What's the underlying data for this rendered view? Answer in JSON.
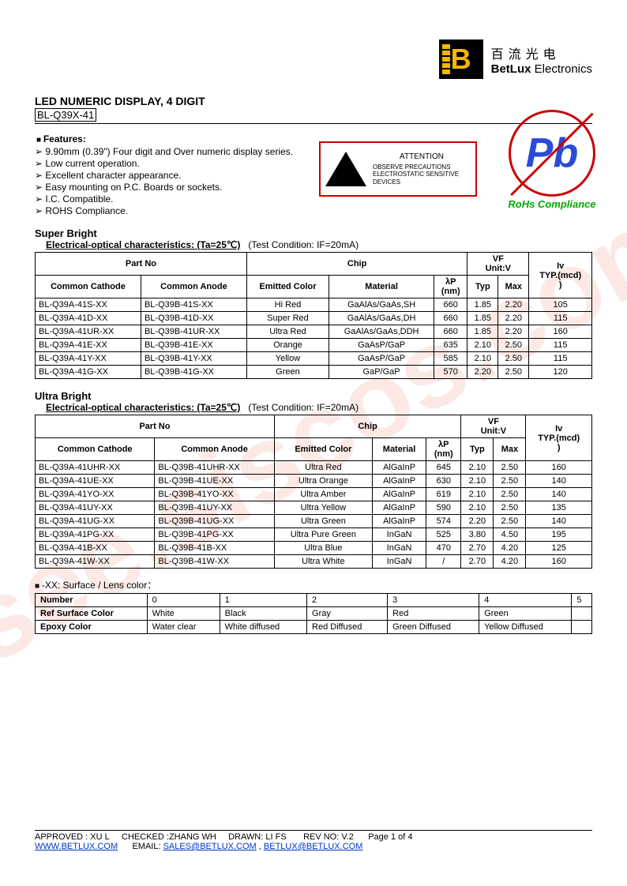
{
  "watermark": "isee.siscos.com",
  "logo": {
    "cn": "百流光电",
    "en_bold": "BetLux",
    "en_light": " Electronics"
  },
  "title": "LED NUMERIC DISPLAY, 4 DIGIT",
  "subtitle": "BL-Q39X-41",
  "features": {
    "heading": "Features:",
    "items": [
      "9.90mm (0.39\") Four digit and Over numeric display series.",
      "Low current operation.",
      "Excellent character appearance.",
      "Easy mounting on P.C. Boards or sockets.",
      "I.C. Compatible.",
      "ROHS Compliance."
    ]
  },
  "esd": {
    "attention": "ATTENTION",
    "text": "OBSERVE PRECAUTIONS ELECTROSTATIC SENSITIVE DEVICES"
  },
  "pb": {
    "symbol": "Pb",
    "label": "RoHs Compliance"
  },
  "super_bright": {
    "title": "Super Bright",
    "sub": "Electrical-optical characteristics: (Ta=25℃)",
    "cond": "(Test Condition: IF=20mA)",
    "headers": {
      "partno": "Part No",
      "chip": "Chip",
      "vf": "VF",
      "vf_unit": "Unit:V",
      "iv": "Iv",
      "iv_unit": "TYP.(mcd)",
      "cc": "Common Cathode",
      "ca": "Common Anode",
      "ec": "Emitted Color",
      "mat": "Material",
      "lp": "λP",
      "lp_unit": "(nm)",
      "typ": "Typ",
      "max": "Max"
    },
    "rows": [
      {
        "cc": "BL-Q39A-41S-XX",
        "ca": "BL-Q39B-41S-XX",
        "ec": "Hi Red",
        "mat": "GaAlAs/GaAs,SH",
        "lp": "660",
        "typ": "1.85",
        "max": "2.20",
        "iv": "105"
      },
      {
        "cc": "BL-Q39A-41D-XX",
        "ca": "BL-Q39B-41D-XX",
        "ec": "Super Red",
        "mat": "GaAlAs/GaAs,DH",
        "lp": "660",
        "typ": "1.85",
        "max": "2.20",
        "iv": "115"
      },
      {
        "cc": "BL-Q39A-41UR-XX",
        "ca": "BL-Q39B-41UR-XX",
        "ec": "Ultra Red",
        "mat": "GaAlAs/GaAs,DDH",
        "lp": "660",
        "typ": "1.85",
        "max": "2.20",
        "iv": "160"
      },
      {
        "cc": "BL-Q39A-41E-XX",
        "ca": "BL-Q39B-41E-XX",
        "ec": "Orange",
        "mat": "GaAsP/GaP",
        "lp": "635",
        "typ": "2.10",
        "max": "2.50",
        "iv": "115"
      },
      {
        "cc": "BL-Q39A-41Y-XX",
        "ca": "BL-Q39B-41Y-XX",
        "ec": "Yellow",
        "mat": "GaAsP/GaP",
        "lp": "585",
        "typ": "2.10",
        "max": "2.50",
        "iv": "115"
      },
      {
        "cc": "BL-Q39A-41G-XX",
        "ca": "BL-Q39B-41G-XX",
        "ec": "Green",
        "mat": "GaP/GaP",
        "lp": "570",
        "typ": "2.20",
        "max": "2.50",
        "iv": "120"
      }
    ]
  },
  "ultra_bright": {
    "title": "Ultra Bright",
    "sub": "Electrical-optical characteristics: (Ta=25℃)",
    "cond": "(Test Condition: IF=20mA)",
    "headers": {
      "partno": "Part No",
      "chip": "Chip",
      "vf": "VF",
      "vf_unit": "Unit:V",
      "iv": "Iv",
      "iv_unit": "TYP.(mcd)",
      "cc": "Common Cathode",
      "ca": "Common Anode",
      "ec": "Emitted Color",
      "mat": "Material",
      "lp": "λP",
      "lp_unit": "(nm)",
      "typ": "Typ",
      "max": "Max"
    },
    "rows": [
      {
        "cc": "BL-Q39A-41UHR-XX",
        "ca": "BL-Q39B-41UHR-XX",
        "ec": "Ultra Red",
        "mat": "AlGaInP",
        "lp": "645",
        "typ": "2.10",
        "max": "2.50",
        "iv": "160"
      },
      {
        "cc": "BL-Q39A-41UE-XX",
        "ca": "BL-Q39B-41UE-XX",
        "ec": "Ultra Orange",
        "mat": "AlGaInP",
        "lp": "630",
        "typ": "2.10",
        "max": "2.50",
        "iv": "140"
      },
      {
        "cc": "BL-Q39A-41YO-XX",
        "ca": "BL-Q39B-41YO-XX",
        "ec": "Ultra Amber",
        "mat": "AlGaInP",
        "lp": "619",
        "typ": "2.10",
        "max": "2.50",
        "iv": "140"
      },
      {
        "cc": "BL-Q39A-41UY-XX",
        "ca": "BL-Q39B-41UY-XX",
        "ec": "Ultra Yellow",
        "mat": "AlGaInP",
        "lp": "590",
        "typ": "2.10",
        "max": "2.50",
        "iv": "135"
      },
      {
        "cc": "BL-Q39A-41UG-XX",
        "ca": "BL-Q39B-41UG-XX",
        "ec": "Ultra Green",
        "mat": "AlGaInP",
        "lp": "574",
        "typ": "2.20",
        "max": "2.50",
        "iv": "140"
      },
      {
        "cc": "BL-Q39A-41PG-XX",
        "ca": "BL-Q39B-41PG-XX",
        "ec": "Ultra Pure Green",
        "mat": "InGaN",
        "lp": "525",
        "typ": "3.80",
        "max": "4.50",
        "iv": "195"
      },
      {
        "cc": "BL-Q39A-41B-XX",
        "ca": "BL-Q39B-41B-XX",
        "ec": "Ultra Blue",
        "mat": "InGaN",
        "lp": "470",
        "typ": "2.70",
        "max": "4.20",
        "iv": "125"
      },
      {
        "cc": "BL-Q39A-41W-XX",
        "ca": "BL-Q39B-41W-XX",
        "ec": "Ultra White",
        "mat": "InGaN",
        "lp": "/",
        "typ": "2.70",
        "max": "4.20",
        "iv": "160"
      }
    ]
  },
  "lens": {
    "heading": "-XX: Surface / Lens color：",
    "row_labels": {
      "number": "Number",
      "ref": "Ref Surface Color",
      "epoxy": "Epoxy Color"
    },
    "cols": [
      "0",
      "1",
      "2",
      "3",
      "4",
      "5"
    ],
    "ref": [
      "White",
      "Black",
      "Gray",
      "Red",
      "Green",
      ""
    ],
    "epoxy": [
      "Water clear",
      "White diffused",
      "Red Diffused",
      "Green Diffused",
      "Yellow Diffused",
      ""
    ]
  },
  "footer": {
    "line1_a": "APPROVED : XU L",
    "line1_b": "CHECKED  :ZHANG WH",
    "line1_c": "DRAWN:  LI  FS",
    "line1_d": "REV  NO: V.2",
    "line1_e": "Page 1 of 4",
    "url": "WWW.BETLUX.COM",
    "email_label": "EMAIL: ",
    "email1": "SALES@BETLUX.COM",
    "sep": " , ",
    "email2": "BETLUX@BETLUX.COM"
  }
}
